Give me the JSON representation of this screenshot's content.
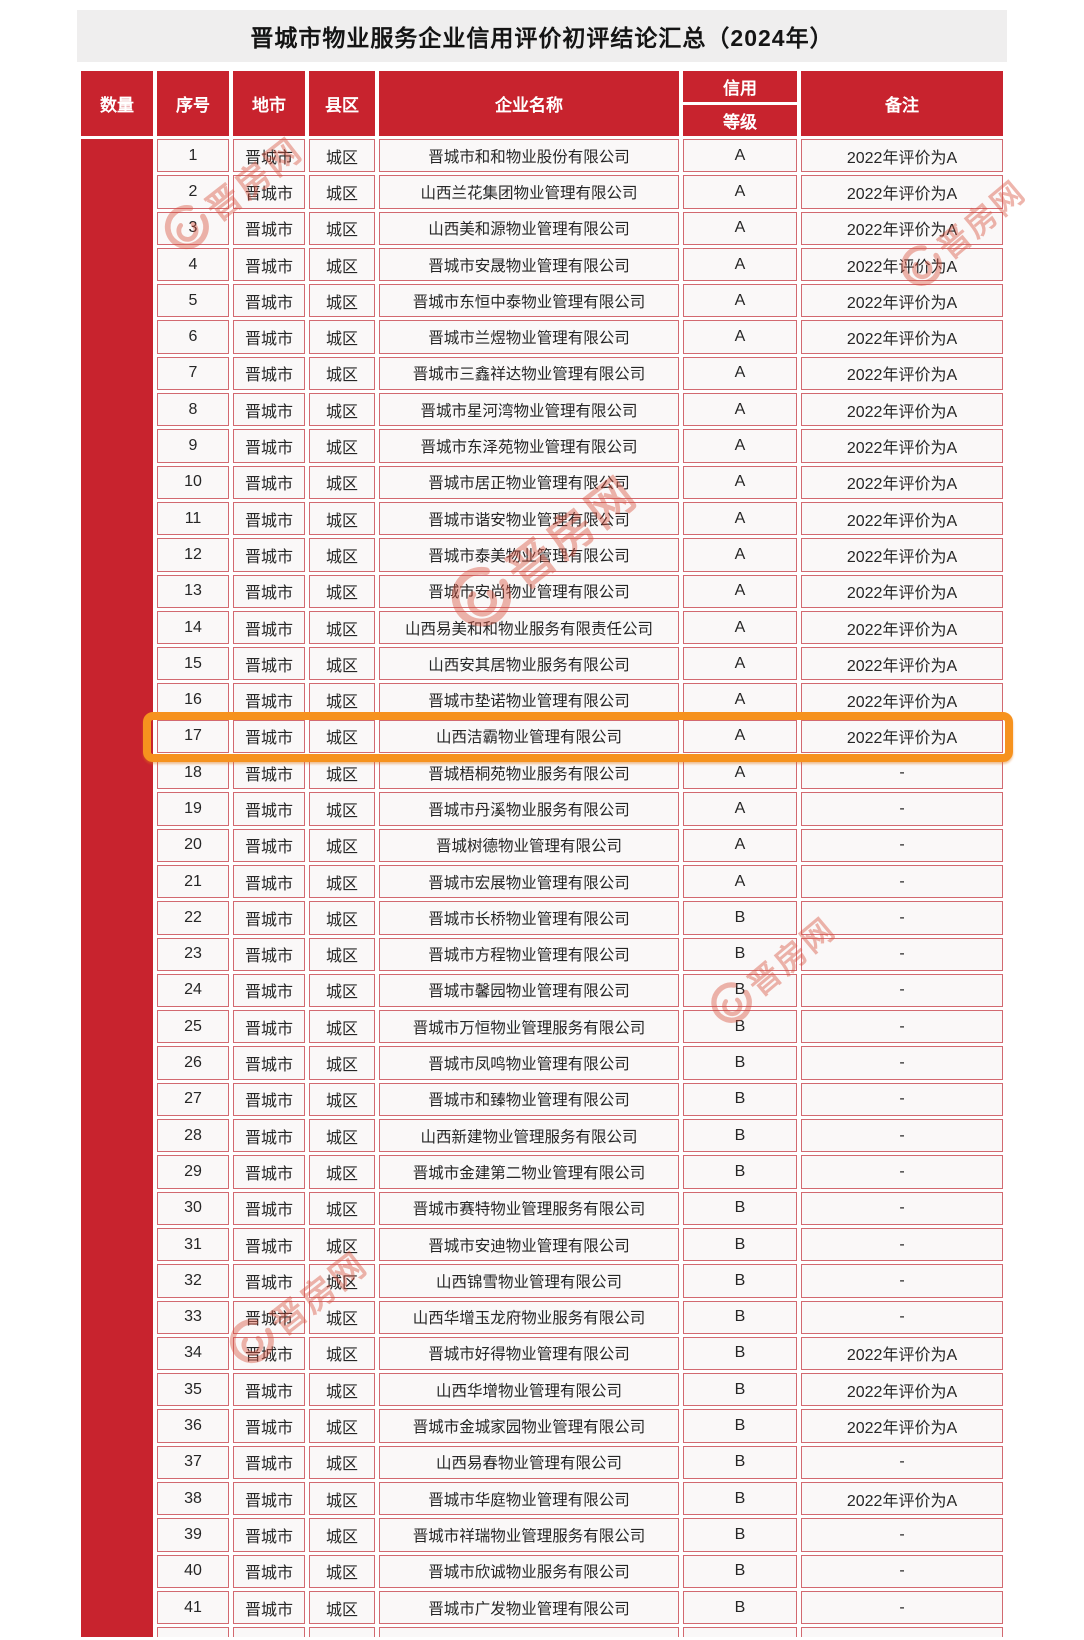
{
  "title": "晋城市物业服务企业信用评价初评结论汇总（2024年）",
  "watermark": {
    "text": "晋房网"
  },
  "colors": {
    "accent_red": "#c8232e",
    "highlight_orange": "#f6921e",
    "banner_gray": "#efeeee"
  },
  "table": {
    "headers": {
      "quantity": "数量",
      "serial": "序号",
      "city": "地市",
      "district": "县区",
      "company": "企业名称",
      "credit_line1": "信用",
      "credit_line2": "等级",
      "remark": "备注"
    },
    "rows": [
      {
        "no": "1",
        "city": "晋城市",
        "district": "城区",
        "company": "晋城市和和物业股份有限公司",
        "grade": "A",
        "remark": "2022年评价为A",
        "highlight": false
      },
      {
        "no": "2",
        "city": "晋城市",
        "district": "城区",
        "company": "山西兰花集团物业管理有限公司",
        "grade": "A",
        "remark": "2022年评价为A",
        "highlight": false
      },
      {
        "no": "3",
        "city": "晋城市",
        "district": "城区",
        "company": "山西美和源物业管理有限公司",
        "grade": "A",
        "remark": "2022年评价为A",
        "highlight": false
      },
      {
        "no": "4",
        "city": "晋城市",
        "district": "城区",
        "company": "晋城市安晟物业管理有限公司",
        "grade": "A",
        "remark": "2022年评价为A",
        "highlight": false
      },
      {
        "no": "5",
        "city": "晋城市",
        "district": "城区",
        "company": "晋城市东恒中泰物业管理有限公司",
        "grade": "A",
        "remark": "2022年评价为A",
        "highlight": false
      },
      {
        "no": "6",
        "city": "晋城市",
        "district": "城区",
        "company": "晋城市兰煜物业管理有限公司",
        "grade": "A",
        "remark": "2022年评价为A",
        "highlight": false
      },
      {
        "no": "7",
        "city": "晋城市",
        "district": "城区",
        "company": "晋城市三鑫祥达物业管理有限公司",
        "grade": "A",
        "remark": "2022年评价为A",
        "highlight": false
      },
      {
        "no": "8",
        "city": "晋城市",
        "district": "城区",
        "company": "晋城市星河湾物业管理有限公司",
        "grade": "A",
        "remark": "2022年评价为A",
        "highlight": false
      },
      {
        "no": "9",
        "city": "晋城市",
        "district": "城区",
        "company": "晋城市东泽苑物业管理有限公司",
        "grade": "A",
        "remark": "2022年评价为A",
        "highlight": false
      },
      {
        "no": "10",
        "city": "晋城市",
        "district": "城区",
        "company": "晋城市居正物业管理有限公司",
        "grade": "A",
        "remark": "2022年评价为A",
        "highlight": false
      },
      {
        "no": "11",
        "city": "晋城市",
        "district": "城区",
        "company": "晋城市谐安物业管理有限公司",
        "grade": "A",
        "remark": "2022年评价为A",
        "highlight": false
      },
      {
        "no": "12",
        "city": "晋城市",
        "district": "城区",
        "company": "晋城市泰美物业管理有限公司",
        "grade": "A",
        "remark": "2022年评价为A",
        "highlight": false
      },
      {
        "no": "13",
        "city": "晋城市",
        "district": "城区",
        "company": "晋城市安尚物业管理有限公司",
        "grade": "A",
        "remark": "2022年评价为A",
        "highlight": false
      },
      {
        "no": "14",
        "city": "晋城市",
        "district": "城区",
        "company": "山西易美和和物业服务有限责任公司",
        "grade": "A",
        "remark": "2022年评价为A",
        "highlight": false
      },
      {
        "no": "15",
        "city": "晋城市",
        "district": "城区",
        "company": "山西安其居物业服务有限公司",
        "grade": "A",
        "remark": "2022年评价为A",
        "highlight": false
      },
      {
        "no": "16",
        "city": "晋城市",
        "district": "城区",
        "company": "晋城市垫诺物业管理有限公司",
        "grade": "A",
        "remark": "2022年评价为A",
        "highlight": false
      },
      {
        "no": "17",
        "city": "晋城市",
        "district": "城区",
        "company": "山西洁霸物业管理有限公司",
        "grade": "A",
        "remark": "2022年评价为A",
        "highlight": true
      },
      {
        "no": "18",
        "city": "晋城市",
        "district": "城区",
        "company": "晋城梧桐苑物业服务有限公司",
        "grade": "A",
        "remark": "-",
        "highlight": false
      },
      {
        "no": "19",
        "city": "晋城市",
        "district": "城区",
        "company": "晋城市丹溪物业服务有限公司",
        "grade": "A",
        "remark": "-",
        "highlight": false
      },
      {
        "no": "20",
        "city": "晋城市",
        "district": "城区",
        "company": "晋城树德物业管理有限公司",
        "grade": "A",
        "remark": "-",
        "highlight": false
      },
      {
        "no": "21",
        "city": "晋城市",
        "district": "城区",
        "company": "晋城市宏展物业管理有限公司",
        "grade": "A",
        "remark": "-",
        "highlight": false
      },
      {
        "no": "22",
        "city": "晋城市",
        "district": "城区",
        "company": "晋城市长桥物业管理有限公司",
        "grade": "B",
        "remark": "-",
        "highlight": false
      },
      {
        "no": "23",
        "city": "晋城市",
        "district": "城区",
        "company": "晋城市方程物业管理有限公司",
        "grade": "B",
        "remark": "-",
        "highlight": false
      },
      {
        "no": "24",
        "city": "晋城市",
        "district": "城区",
        "company": "晋城市馨园物业管理有限公司",
        "grade": "B",
        "remark": "-",
        "highlight": false
      },
      {
        "no": "25",
        "city": "晋城市",
        "district": "城区",
        "company": "晋城市万恒物业管理服务有限公司",
        "grade": "B",
        "remark": "-",
        "highlight": false
      },
      {
        "no": "26",
        "city": "晋城市",
        "district": "城区",
        "company": "晋城市凤鸣物业管理有限公司",
        "grade": "B",
        "remark": "-",
        "highlight": false
      },
      {
        "no": "27",
        "city": "晋城市",
        "district": "城区",
        "company": "晋城市和臻物业管理有限公司",
        "grade": "B",
        "remark": "-",
        "highlight": false
      },
      {
        "no": "28",
        "city": "晋城市",
        "district": "城区",
        "company": "山西新建物业管理服务有限公司",
        "grade": "B",
        "remark": "-",
        "highlight": false
      },
      {
        "no": "29",
        "city": "晋城市",
        "district": "城区",
        "company": "晋城市金建第二物业管理有限公司",
        "grade": "B",
        "remark": "-",
        "highlight": false
      },
      {
        "no": "30",
        "city": "晋城市",
        "district": "城区",
        "company": "晋城市赛特物业管理服务有限公司",
        "grade": "B",
        "remark": "-",
        "highlight": false
      },
      {
        "no": "31",
        "city": "晋城市",
        "district": "城区",
        "company": "晋城市安迪物业管理有限公司",
        "grade": "B",
        "remark": "-",
        "highlight": false
      },
      {
        "no": "32",
        "city": "晋城市",
        "district": "城区",
        "company": "山西锦雪物业管理有限公司",
        "grade": "B",
        "remark": "-",
        "highlight": false
      },
      {
        "no": "33",
        "city": "晋城市",
        "district": "城区",
        "company": "山西华增玉龙府物业服务有限公司",
        "grade": "B",
        "remark": "-",
        "highlight": false
      },
      {
        "no": "34",
        "city": "晋城市",
        "district": "城区",
        "company": "晋城市好得物业管理有限公司",
        "grade": "B",
        "remark": "2022年评价为A",
        "highlight": false
      },
      {
        "no": "35",
        "city": "晋城市",
        "district": "城区",
        "company": "山西华增物业管理有限公司",
        "grade": "B",
        "remark": "2022年评价为A",
        "highlight": false
      },
      {
        "no": "36",
        "city": "晋城市",
        "district": "城区",
        "company": "晋城市金城家园物业管理有限公司",
        "grade": "B",
        "remark": "2022年评价为A",
        "highlight": false
      },
      {
        "no": "37",
        "city": "晋城市",
        "district": "城区",
        "company": "山西易春物业管理有限公司",
        "grade": "B",
        "remark": "-",
        "highlight": false
      },
      {
        "no": "38",
        "city": "晋城市",
        "district": "城区",
        "company": "晋城市华庭物业管理有限公司",
        "grade": "B",
        "remark": "2022年评价为A",
        "highlight": false
      },
      {
        "no": "39",
        "city": "晋城市",
        "district": "城区",
        "company": "晋城市祥瑞物业管理服务有限公司",
        "grade": "B",
        "remark": "-",
        "highlight": false
      },
      {
        "no": "40",
        "city": "晋城市",
        "district": "城区",
        "company": "晋城市欣诚物业服务有限公司",
        "grade": "B",
        "remark": "-",
        "highlight": false
      },
      {
        "no": "41",
        "city": "晋城市",
        "district": "城区",
        "company": "晋城市广发物业管理有限公司",
        "grade": "B",
        "remark": "-",
        "highlight": false
      }
    ]
  }
}
